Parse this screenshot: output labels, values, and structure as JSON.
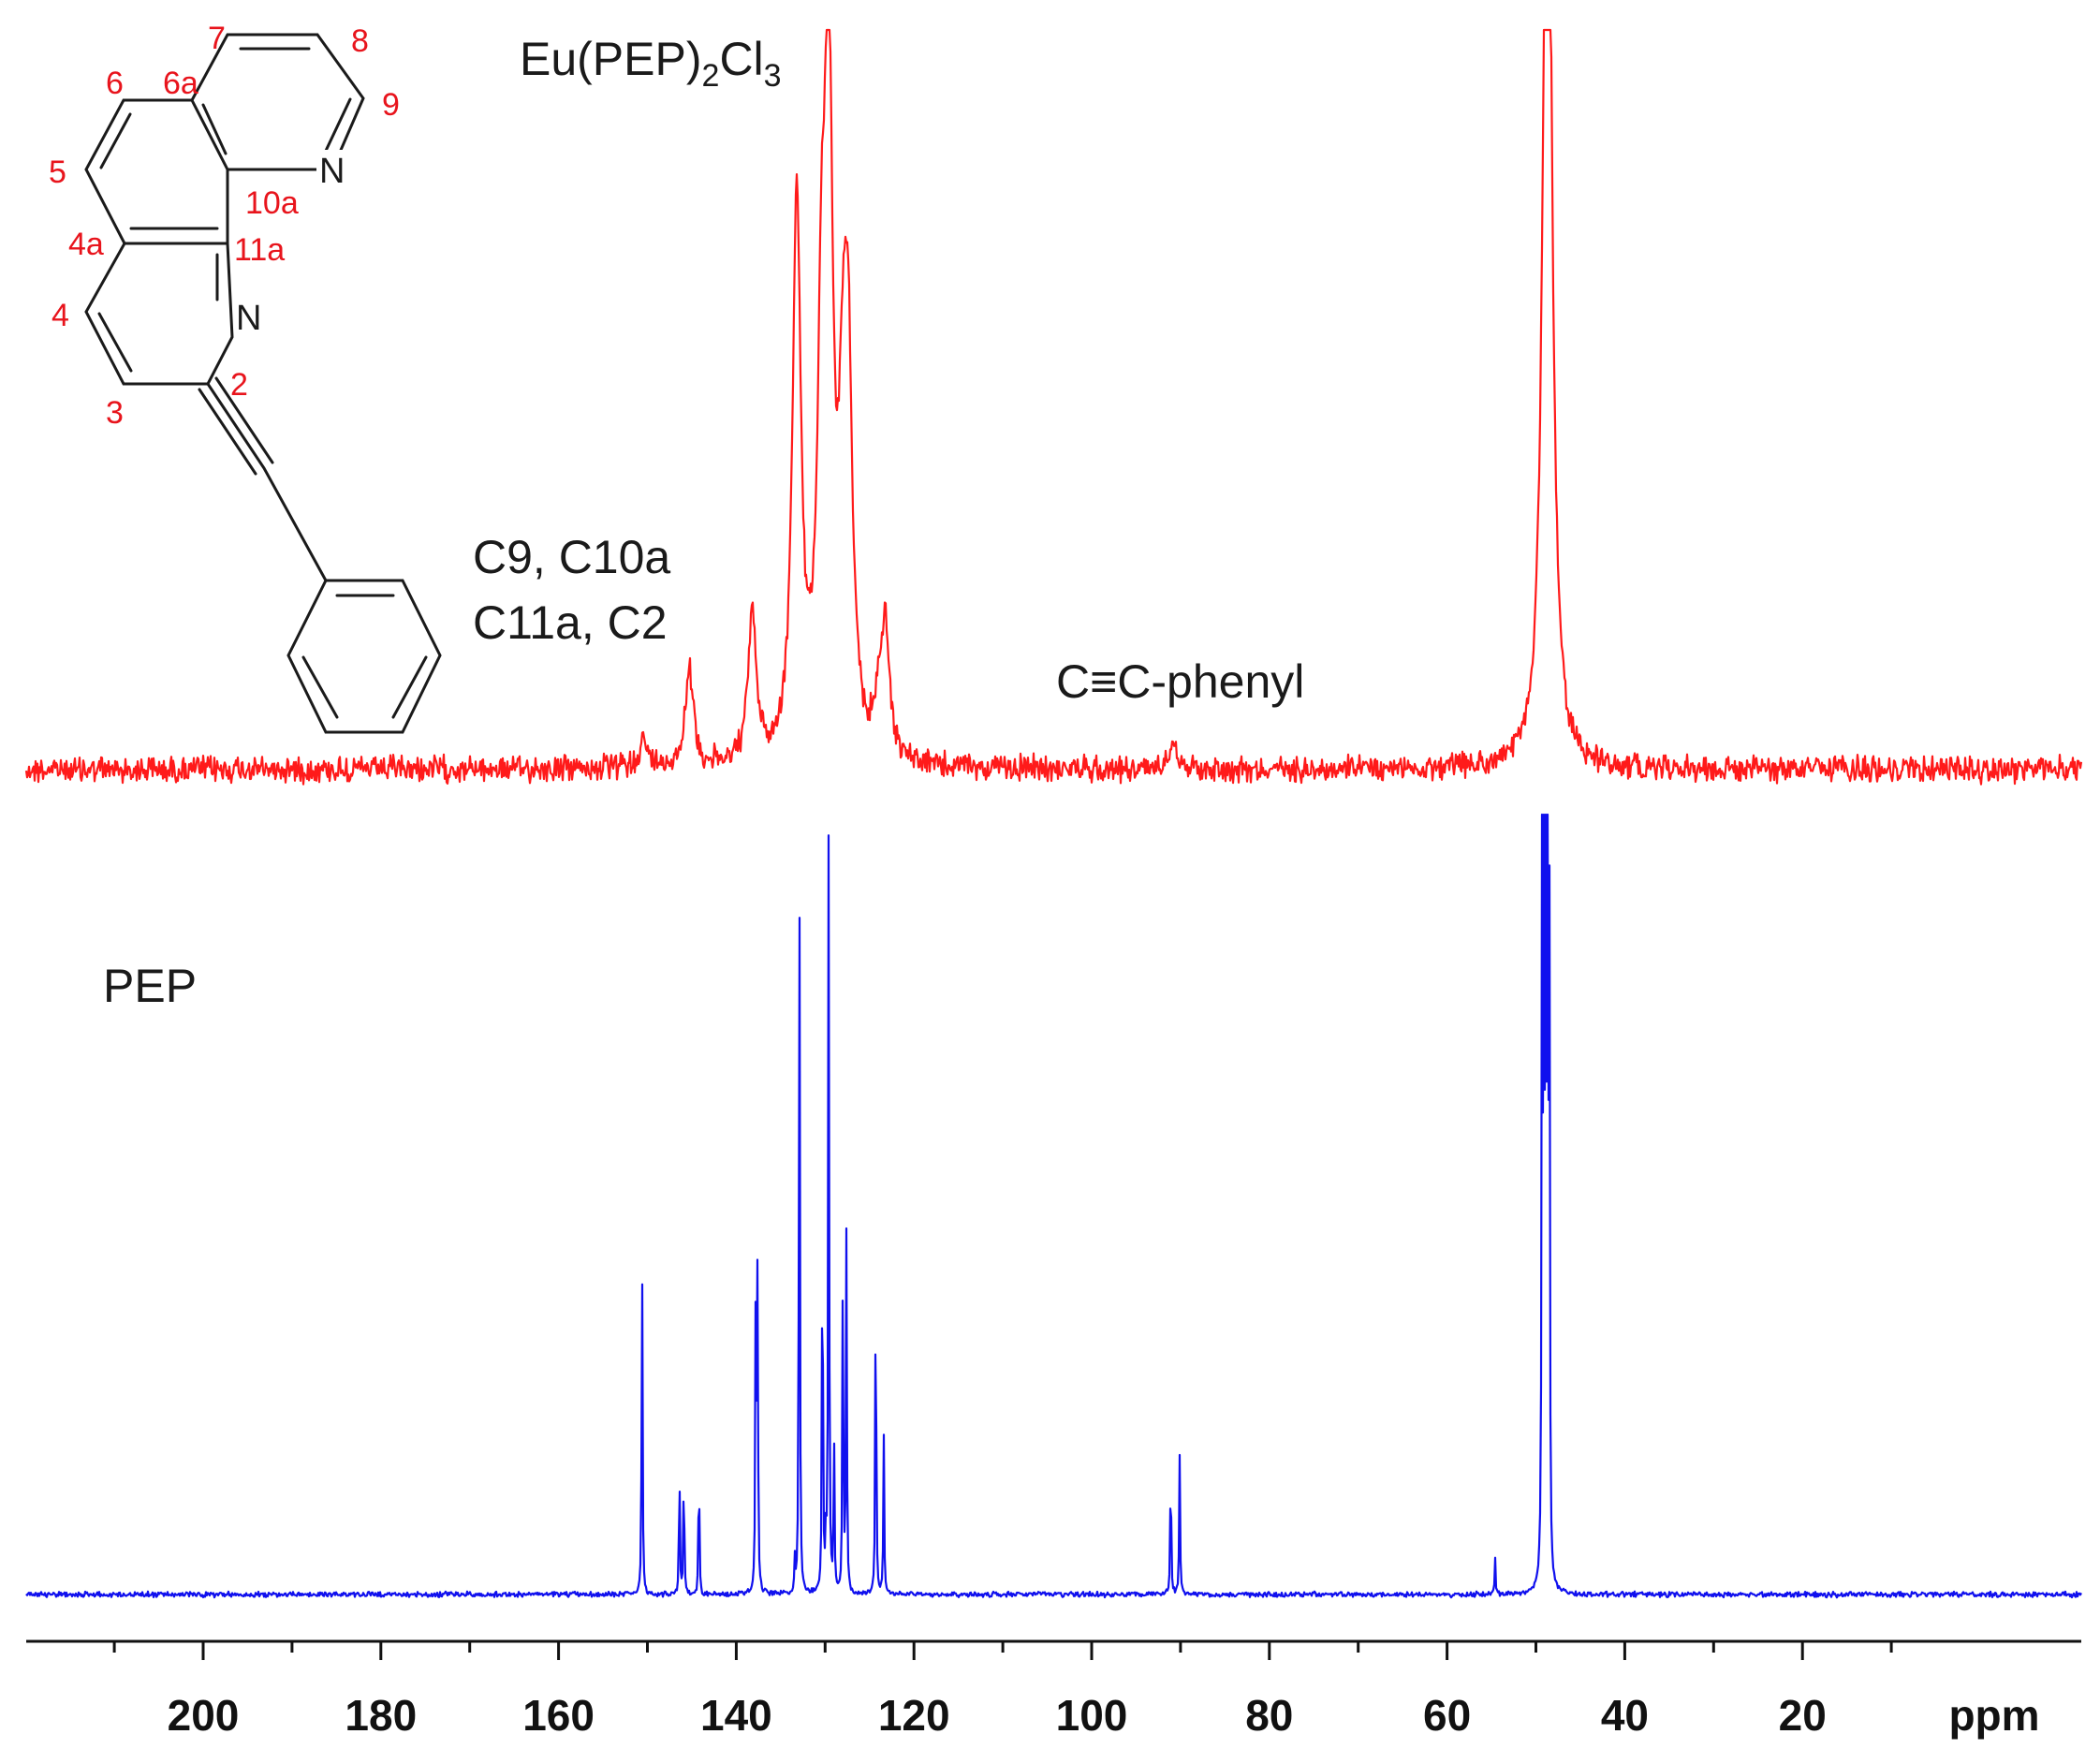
{
  "chart_data": {
    "type": "line",
    "xlabel": "ppm",
    "xlim": [
      220,
      3
    ],
    "x_reversed": true,
    "x_ticks": [
      200,
      180,
      160,
      140,
      120,
      100,
      80,
      60,
      40,
      20
    ],
    "minor_tick_step": 10,
    "grid": false,
    "legend": "none",
    "colors": {
      "eu_complex": "#ff1a1a",
      "pep": "#1010ee",
      "structure_numbers": "#e8141c",
      "structure_bonds": "#1a1a1a"
    },
    "series": [
      {
        "name": "Eu(PEP)2Cl3",
        "peaks": [
          {
            "x": 150.5,
            "h": 0.06
          },
          {
            "x": 145.3,
            "h": 0.22
          },
          {
            "x": 138.2,
            "h": 0.33
          },
          {
            "x": 133.2,
            "h": 1.25
          },
          {
            "x": 130.4,
            "h": 0.78
          },
          {
            "x": 129.6,
            "h": 1.42
          },
          {
            "x": 128.0,
            "h": 0.56
          },
          {
            "x": 127.4,
            "h": 0.75
          },
          {
            "x": 124.0,
            "h": 0.1
          },
          {
            "x": 123.2,
            "h": 0.28
          },
          {
            "x": 90.9,
            "h": 0.07
          },
          {
            "x": 48.7,
            "h": 2.6
          }
        ]
      },
      {
        "name": "PEP",
        "peaks": [
          {
            "x": 150.6,
            "h": 0.66
          },
          {
            "x": 146.4,
            "h": 0.25
          },
          {
            "x": 145.9,
            "h": 0.26
          },
          {
            "x": 144.2,
            "h": 0.27
          },
          {
            "x": 137.8,
            "h": 0.64
          },
          {
            "x": 137.6,
            "h": 0.63
          },
          {
            "x": 133.4,
            "h": 0.06
          },
          {
            "x": 132.9,
            "h": 1.48
          },
          {
            "x": 130.3,
            "h": 0.8
          },
          {
            "x": 129.9,
            "h": 0.1
          },
          {
            "x": 129.6,
            "h": 1.46
          },
          {
            "x": 129.0,
            "h": 0.3
          },
          {
            "x": 128.0,
            "h": 0.67
          },
          {
            "x": 127.6,
            "h": 0.69
          },
          {
            "x": 124.3,
            "h": 0.67
          },
          {
            "x": 123.4,
            "h": 0.3
          },
          {
            "x": 91.1,
            "h": 0.27
          },
          {
            "x": 90.1,
            "h": 0.27
          },
          {
            "x": 54.6,
            "h": 0.07
          },
          {
            "x": 49.3,
            "h": 1.55
          },
          {
            "x": 49.1,
            "h": 1.52
          },
          {
            "x": 48.9,
            "h": 1.57
          },
          {
            "x": 48.7,
            "h": 1.53
          },
          {
            "x": 48.5,
            "h": 1.5
          }
        ]
      }
    ],
    "annotations": [
      {
        "text_lines": [
          "C9, C10a",
          "C11a, C2"
        ]
      },
      {
        "text": "C≡C-phenyl"
      }
    ]
  },
  "labels": {
    "eu_title_main": "Eu(PEP)",
    "eu_title_sub1": "2",
    "eu_title_mid": "Cl",
    "eu_title_sub2": "3",
    "pep_title": "PEP",
    "annotation_c9_line1": "C9, C10a",
    "annotation_c9_line2": "C11a, C2",
    "annotation_alkyne": "C≡C-phenyl",
    "xlabel": "ppm"
  },
  "structure": {
    "name": "PEP",
    "atom_numbers": [
      "7",
      "8",
      "6",
      "6a",
      "9",
      "5",
      "10a",
      "4a",
      "11a",
      "4",
      "3",
      "2"
    ],
    "heteroatoms": [
      "N",
      "N"
    ]
  }
}
